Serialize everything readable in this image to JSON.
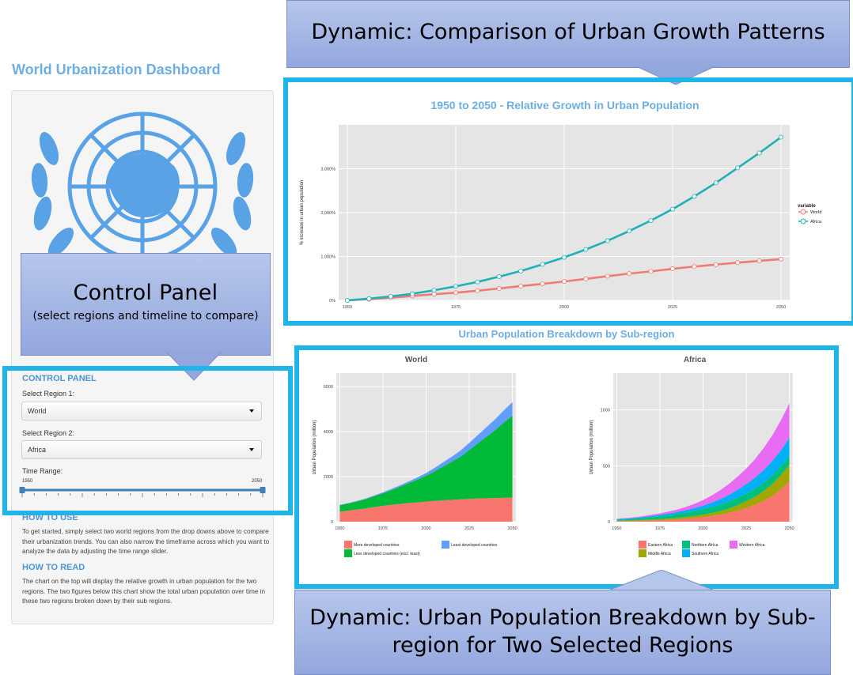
{
  "app_title": "World Urbanization Dashboard",
  "callouts": {
    "top": "Dynamic: Comparison of Urban Growth Patterns",
    "control_title": "Control Panel",
    "control_sub": "(select regions and timeline to compare)",
    "bottom": "Dynamic: Urban Population Breakdown by Sub-region for Two Selected Regions"
  },
  "control_panel": {
    "heading": "CONTROL PANEL",
    "region1_label": "Select Region 1:",
    "region1_value": "World",
    "region2_label": "Select Region 2:",
    "region2_value": "Africa",
    "time_label": "Time Range:",
    "range_min": "1950",
    "range_max": "2050",
    "range_start": 0,
    "range_end": 1
  },
  "help": {
    "how_to_use_title": "HOW TO USE",
    "how_to_use_text": "To get started, simply select two world regions from the drop downs above to compare their urbanization trends. You can also narrow the timeframe across which you want to analyze the data by adjusting the time range slider.",
    "how_to_read_title": "HOW TO READ",
    "how_to_read_text": "The chart on the top will display the relative growth in urban population for the two regions. The two figures below this chart show the total urban population over time in these two regions broken down by their sub regions."
  },
  "breakdown_title": "Urban Population Breakdown by Sub-region",
  "colors": {
    "accent": "#20b5e8",
    "title_blue": "#6eaee0",
    "world_line": "#f07b72",
    "africa_line": "#1fb0b8",
    "panel_bg": "#e5e5e5"
  },
  "chart_data": [
    {
      "type": "line",
      "title": "1950 to 2050 - Relative Growth in Urban Population",
      "ylabel": "% increase in urban population",
      "xlabel": "",
      "ylim": [
        0,
        4000
      ],
      "xlim": [
        1948,
        2052
      ],
      "x_ticks": [
        "1950",
        "1975",
        "2000",
        "2025",
        "2050"
      ],
      "x_tick_values": [
        1950,
        1975,
        2000,
        2025,
        2050
      ],
      "y_ticks": [
        "0%",
        "1,000%",
        "2,000%",
        "3,000%"
      ],
      "y_tick_values": [
        0,
        1000,
        2000,
        3000
      ],
      "legend_title": "variable",
      "legend_position": "right",
      "grid": true,
      "x": [
        1950,
        1955,
        1960,
        1965,
        1970,
        1975,
        1980,
        1985,
        1990,
        1995,
        2000,
        2005,
        2010,
        2015,
        2020,
        2025,
        2030,
        2035,
        2040,
        2045,
        2050
      ],
      "series": [
        {
          "name": "World",
          "color": "#f07b72",
          "values": [
            0,
            25,
            60,
            100,
            140,
            175,
            220,
            270,
            325,
            375,
            430,
            490,
            550,
            610,
            660,
            720,
            770,
            815,
            860,
            900,
            940
          ]
        },
        {
          "name": "Africa",
          "color": "#1fb0b8",
          "values": [
            0,
            40,
            90,
            150,
            230,
            320,
            420,
            540,
            670,
            820,
            980,
            1160,
            1360,
            1580,
            1820,
            2080,
            2370,
            2680,
            3020,
            3360,
            3720
          ]
        }
      ]
    },
    {
      "type": "area",
      "title": "World",
      "ylabel": "Urban Population (million)",
      "ylim": [
        0,
        6600
      ],
      "xlim": [
        1948,
        2052
      ],
      "x_ticks": [
        "1950",
        "1975",
        "2000",
        "2025",
        "2050"
      ],
      "x_tick_values": [
        1950,
        1975,
        2000,
        2025,
        2050
      ],
      "y_ticks": [
        "0",
        "2000",
        "4000",
        "6000"
      ],
      "y_tick_values": [
        0,
        2000,
        4000,
        6000
      ],
      "legend_position": "bottom",
      "x": [
        1950,
        1955,
        1960,
        1965,
        1970,
        1975,
        1980,
        1985,
        1990,
        1995,
        2000,
        2005,
        2010,
        2015,
        2020,
        2025,
        2030,
        2035,
        2040,
        2045,
        2050
      ],
      "series": [
        {
          "name": "More developed countries",
          "color": "#f8766d",
          "values": [
            440,
            490,
            540,
            590,
            650,
            700,
            750,
            790,
            830,
            860,
            890,
            920,
            950,
            970,
            990,
            1010,
            1030,
            1040,
            1050,
            1060,
            1070
          ]
        },
        {
          "name": "Less developed countries (excl. least)",
          "color": "#00ba38",
          "values": [
            290,
            320,
            360,
            410,
            480,
            560,
            650,
            760,
            880,
            1010,
            1150,
            1320,
            1510,
            1700,
            1900,
            2170,
            2450,
            2740,
            3020,
            3340,
            3640
          ]
        },
        {
          "name": "Least developed countries",
          "color": "#619cff",
          "values": [
            15,
            17,
            22,
            28,
            35,
            42,
            55,
            65,
            80,
            98,
            120,
            150,
            180,
            220,
            270,
            320,
            370,
            420,
            480,
            540,
            600
          ]
        }
      ]
    },
    {
      "type": "area",
      "title": "Africa",
      "ylabel": "Urban Population (million)",
      "ylim": [
        0,
        1330
      ],
      "xlim": [
        1948,
        2052
      ],
      "x_ticks": [
        "1950",
        "1975",
        "2000",
        "2025",
        "2050"
      ],
      "x_tick_values": [
        1950,
        1975,
        2000,
        2025,
        2050
      ],
      "y_ticks": [
        "0",
        "500",
        "1000"
      ],
      "y_tick_values": [
        0,
        500,
        1000
      ],
      "legend_position": "bottom",
      "x": [
        1950,
        1955,
        1960,
        1965,
        1970,
        1975,
        1980,
        1985,
        1990,
        1995,
        2000,
        2005,
        2010,
        2015,
        2020,
        2025,
        2030,
        2035,
        2040,
        2045,
        2050
      ],
      "series": [
        {
          "name": "Eastern Africa",
          "color": "#f8766d",
          "values": [
            5,
            6,
            7,
            9,
            11,
            13,
            16,
            20,
            26,
            32,
            40,
            50,
            62,
            78,
            98,
            122,
            150,
            185,
            230,
            290,
            360
          ]
        },
        {
          "name": "Middle Africa",
          "color": "#a3a500",
          "values": [
            3,
            4,
            5,
            6,
            8,
            10,
            12,
            14,
            16,
            19,
            22,
            26,
            32,
            40,
            50,
            60,
            72,
            88,
            105,
            125,
            150
          ]
        },
        {
          "name": "Northern Africa",
          "color": "#00bf7d",
          "values": [
            8,
            10,
            13,
            16,
            20,
            24,
            29,
            34,
            39,
            44,
            49,
            54,
            58,
            62,
            65,
            68,
            71,
            73,
            75,
            77,
            79
          ]
        },
        {
          "name": "Southern Africa",
          "color": "#00b0f6",
          "values": [
            6,
            7,
            8,
            10,
            12,
            14,
            16,
            18,
            22,
            26,
            32,
            40,
            50,
            60,
            72,
            86,
            100,
            115,
            130,
            145,
            160
          ]
        },
        {
          "name": "Western Africa",
          "color": "#e76bf3",
          "values": [
            4,
            5,
            6,
            8,
            10,
            13,
            17,
            22,
            29,
            38,
            50,
            64,
            80,
            98,
            118,
            140,
            166,
            196,
            230,
            268,
            310
          ]
        }
      ]
    }
  ]
}
